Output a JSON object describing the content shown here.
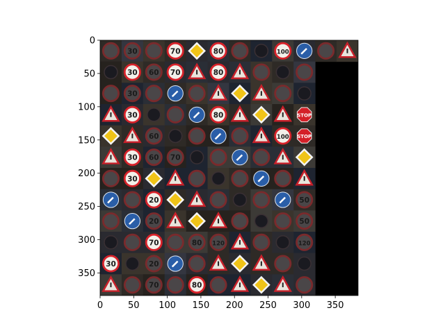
{
  "figure": {
    "x_ticks": [
      "0",
      "50",
      "100",
      "150",
      "200",
      "250",
      "300",
      "350"
    ],
    "y_ticks": [
      "0",
      "50",
      "100",
      "150",
      "200",
      "250",
      "300",
      "350"
    ]
  },
  "chart_data": {
    "type": "heatmap",
    "image_extent": {
      "width": 384,
      "height": 384
    },
    "tile_size": 32,
    "grid": {
      "columns": 12,
      "rows": 12
    },
    "xlim": [
      0,
      384
    ],
    "ylim": [
      384,
      0
    ],
    "x_tick_values": [
      0,
      50,
      100,
      150,
      200,
      250,
      300,
      350
    ],
    "y_tick_values": [
      0,
      50,
      100,
      150,
      200,
      250,
      300,
      350
    ],
    "grid_lines": false,
    "background_color": "#000000",
    "filled_cells_per_row": [
      12,
      10,
      10,
      10,
      10,
      10,
      10,
      10,
      10,
      10,
      10,
      10
    ],
    "tile_texts": [
      [
        "",
        "30",
        "",
        "70",
        "",
        "80",
        "",
        "",
        "100",
        "",
        "",
        ""
      ],
      [
        "",
        "30",
        "60",
        "70",
        "",
        "80",
        "",
        "",
        "",
        "",
        "",
        ""
      ],
      [
        "",
        "30",
        "",
        "",
        "",
        "",
        "",
        "",
        "",
        "",
        "",
        ""
      ],
      [
        "",
        "30",
        "",
        "",
        "",
        "80",
        "",
        "",
        "",
        "STOP",
        "",
        ""
      ],
      [
        "",
        "",
        "60",
        "",
        "",
        "",
        "",
        "",
        "100",
        "STOP",
        "",
        ""
      ],
      [
        "",
        "30",
        "60",
        "70",
        "",
        "",
        "",
        "",
        "",
        "",
        "",
        ""
      ],
      [
        "",
        "30",
        "",
        "",
        "",
        "",
        "",
        "",
        "",
        "",
        "",
        ""
      ],
      [
        "",
        "",
        "20",
        "",
        "",
        "",
        "",
        "",
        "",
        "50",
        "",
        ""
      ],
      [
        "",
        "",
        "20",
        "",
        "",
        "",
        "",
        "",
        "",
        "50",
        "",
        ""
      ],
      [
        "",
        "",
        "70",
        "",
        "80",
        "120",
        "",
        "",
        "",
        "120",
        "",
        ""
      ],
      [
        "30",
        "",
        "20",
        "",
        "",
        "",
        "",
        "",
        "",
        "",
        "",
        ""
      ],
      [
        "",
        "",
        "70",
        "",
        "80",
        "",
        "",
        "",
        "",
        "",
        "",
        ""
      ]
    ]
  }
}
